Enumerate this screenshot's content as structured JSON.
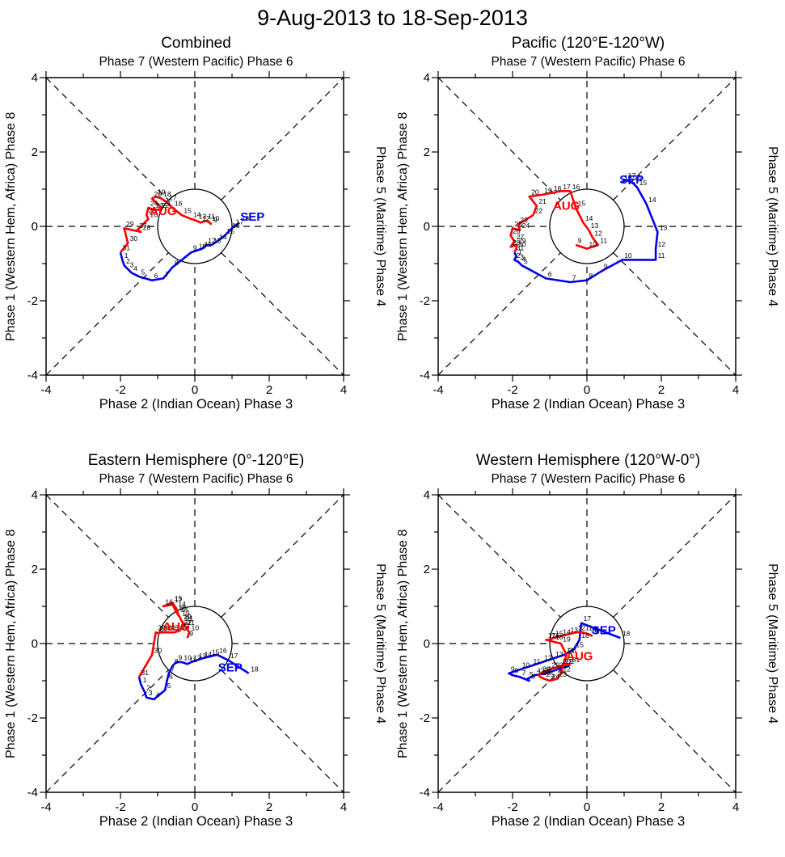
{
  "title": "9-Aug-2013 to 18-Sep-2013",
  "colors": {
    "aug": "#ff0000",
    "sep": "#0000ee",
    "axis": "#000000",
    "background": "#ffffff",
    "day_label": "#000000"
  },
  "chart_data": [
    {
      "type": "line",
      "title": "Combined",
      "top_label": "Phase 7 (Western Pacific) Phase 6",
      "xlabel": "Phase 2 (Indian Ocean) Phase 3",
      "left_label": "Phase 1 (Western Hem, Africa) Phase 8",
      "right_label": "Phase 5 (Maritime) Phase 4",
      "xlim": [
        -4,
        4
      ],
      "ylim": [
        -4,
        4
      ],
      "ticks_labeled": [
        -4,
        -2,
        0,
        2,
        4
      ],
      "unit_circle_radius": 1,
      "series": [
        {
          "name": "AUG",
          "color": "#ff0000",
          "label_pos": [
            -0.85,
            0.3
          ],
          "days": [
            9,
            10,
            11,
            12,
            13,
            14,
            15,
            16,
            17,
            18,
            19,
            20,
            21,
            22,
            23,
            24,
            25,
            26,
            27,
            28,
            29,
            30,
            31
          ],
          "points": [
            [
              0.45,
              0.05
            ],
            [
              0.4,
              0.1
            ],
            [
              0.3,
              0.15
            ],
            [
              0.15,
              0.1
            ],
            [
              0.05,
              0.15
            ],
            [
              -0.1,
              0.2
            ],
            [
              -0.35,
              0.3
            ],
            [
              -0.6,
              0.5
            ],
            [
              -0.75,
              0.65
            ],
            [
              -0.9,
              0.75
            ],
            [
              -1.05,
              0.8
            ],
            [
              -1.15,
              0.75
            ],
            [
              -0.9,
              0.5
            ],
            [
              -0.95,
              0.45
            ],
            [
              -1.1,
              0.45
            ],
            [
              -1.25,
              0.5
            ],
            [
              -1.3,
              0.3
            ],
            [
              -1.25,
              0.2
            ],
            [
              -1.55,
              -0.1
            ],
            [
              -1.45,
              -0.15
            ],
            [
              -1.9,
              -0.05
            ],
            [
              -1.8,
              -0.45
            ],
            [
              -2.0,
              -0.7
            ]
          ]
        },
        {
          "name": "SEP",
          "color": "#0000ee",
          "label_pos": [
            1.55,
            0.15
          ],
          "days": [
            1,
            2,
            3,
            4,
            5,
            6,
            7,
            8,
            9,
            10,
            11,
            12,
            13,
            14,
            15,
            16,
            17,
            18
          ],
          "points": [
            [
              -1.95,
              -0.9
            ],
            [
              -1.9,
              -1.05
            ],
            [
              -1.8,
              -1.15
            ],
            [
              -1.7,
              -1.25
            ],
            [
              -1.5,
              -1.35
            ],
            [
              -1.15,
              -1.45
            ],
            [
              -0.85,
              -1.4
            ],
            [
              -0.6,
              -1.1
            ],
            [
              -0.1,
              -0.7
            ],
            [
              0.05,
              -0.65
            ],
            [
              0.2,
              -0.6
            ],
            [
              0.3,
              -0.5
            ],
            [
              0.45,
              -0.5
            ],
            [
              0.6,
              -0.4
            ],
            [
              0.8,
              -0.25
            ],
            [
              0.95,
              -0.1
            ],
            [
              1.05,
              0.0
            ],
            [
              1.2,
              0.1
            ]
          ]
        }
      ]
    },
    {
      "type": "line",
      "title": "Pacific (120°E-120°W)",
      "top_label": "Phase 7 (Western Pacific) Phase 6",
      "xlabel": "Phase 2 (Indian Ocean) Phase 3",
      "left_label": "Phase 1 (Western Hem, Africa) Phase 8",
      "right_label": "Phase 5 (Maritime) Phase 4",
      "xlim": [
        -4,
        4
      ],
      "ylim": [
        -4,
        4
      ],
      "ticks_labeled": [
        -4,
        -2,
        0,
        2,
        4
      ],
      "unit_circle_radius": 1,
      "series": [
        {
          "name": "AUG",
          "color": "#ff0000",
          "label_pos": [
            -0.55,
            0.45
          ],
          "days": [
            9,
            10,
            11,
            12,
            13,
            14,
            15,
            16,
            17,
            18,
            19,
            20,
            21,
            22,
            23,
            24,
            25,
            26,
            27,
            28,
            29,
            30,
            31
          ],
          "points": [
            [
              -0.3,
              -0.5
            ],
            [
              0.0,
              -0.6
            ],
            [
              0.3,
              -0.5
            ],
            [
              0.15,
              -0.3
            ],
            [
              0.05,
              -0.1
            ],
            [
              -0.1,
              0.1
            ],
            [
              -0.3,
              0.5
            ],
            [
              -0.45,
              0.95
            ],
            [
              -0.7,
              0.95
            ],
            [
              -0.95,
              0.9
            ],
            [
              -1.2,
              0.85
            ],
            [
              -1.55,
              0.8
            ],
            [
              -1.35,
              0.55
            ],
            [
              -1.45,
              0.3
            ],
            [
              -1.85,
              0.05
            ],
            [
              -1.8,
              -0.1
            ],
            [
              -2.0,
              -0.05
            ],
            [
              -2.05,
              -0.25
            ],
            [
              -1.95,
              -0.4
            ],
            [
              -2.05,
              -0.55
            ],
            [
              -1.9,
              -0.5
            ],
            [
              -1.9,
              -0.6
            ],
            [
              -1.95,
              -0.7
            ]
          ]
        },
        {
          "name": "SEP",
          "color": "#0000ee",
          "label_pos": [
            1.2,
            1.15
          ],
          "days": [
            1,
            2,
            3,
            4,
            5,
            6,
            7,
            8,
            9,
            10,
            11,
            12,
            13,
            14,
            15,
            16,
            17,
            18
          ],
          "points": [
            [
              -1.9,
              -0.8
            ],
            [
              -1.95,
              -0.9
            ],
            [
              -1.85,
              -0.95
            ],
            [
              -1.8,
              -1.0
            ],
            [
              -1.75,
              -1.05
            ],
            [
              -1.1,
              -1.4
            ],
            [
              -0.45,
              -1.5
            ],
            [
              0.0,
              -1.45
            ],
            [
              0.4,
              -1.2
            ],
            [
              0.95,
              -0.9
            ],
            [
              1.85,
              -0.9
            ],
            [
              1.85,
              -0.6
            ],
            [
              1.9,
              -0.15
            ],
            [
              1.6,
              0.6
            ],
            [
              1.35,
              1.05
            ],
            [
              1.2,
              1.2
            ],
            [
              1.05,
              1.25
            ],
            [
              0.95,
              1.2
            ]
          ]
        }
      ]
    },
    {
      "type": "line",
      "title": "Eastern Hemisphere (0°-120°E)",
      "top_label": "Phase 7 (Western Pacific) Phase 6",
      "xlabel": "Phase 2 (Indian Ocean) Phase 3",
      "left_label": "Phase 1 (Western Hem, Africa) Phase 8",
      "right_label": "Phase 5 (Maritime) Phase 4",
      "xlim": [
        -4,
        4
      ],
      "ylim": [
        -4,
        4
      ],
      "ticks_labeled": [
        -4,
        -2,
        0,
        2,
        4
      ],
      "unit_circle_radius": 1,
      "series": [
        {
          "name": "AUG",
          "color": "#ff0000",
          "label_pos": [
            -0.5,
            0.35
          ],
          "days": [
            9,
            10,
            11,
            12,
            13,
            14,
            15,
            16,
            17,
            18,
            19,
            20,
            21,
            22,
            23,
            24,
            25,
            26,
            27,
            28,
            29,
            30,
            31
          ],
          "points": [
            [
              -0.2,
              0.15
            ],
            [
              -0.15,
              0.3
            ],
            [
              -0.25,
              0.45
            ],
            [
              -0.35,
              0.6
            ],
            [
              -0.45,
              0.8
            ],
            [
              -0.5,
              0.95
            ],
            [
              -0.6,
              1.1
            ],
            [
              -0.85,
              1.0
            ],
            [
              -0.6,
              1.05
            ],
            [
              -0.5,
              0.85
            ],
            [
              -0.4,
              0.7
            ],
            [
              -0.35,
              0.6
            ],
            [
              -0.3,
              0.55
            ],
            [
              -0.35,
              0.45
            ],
            [
              -0.4,
              0.35
            ],
            [
              -0.55,
              0.3
            ],
            [
              -0.7,
              0.3
            ],
            [
              -0.8,
              0.3
            ],
            [
              -0.9,
              0.3
            ],
            [
              -1.0,
              0.28
            ],
            [
              -1.05,
              0.3
            ],
            [
              -1.15,
              -0.3
            ],
            [
              -1.5,
              -0.9
            ]
          ]
        },
        {
          "name": "SEP",
          "color": "#0000ee",
          "label_pos": [
            0.95,
            -0.75
          ],
          "days": [
            1,
            2,
            3,
            4,
            5,
            6,
            7,
            8,
            9,
            10,
            11,
            12,
            13,
            14,
            15,
            16,
            17,
            18
          ],
          "points": [
            [
              -1.45,
              -1.1
            ],
            [
              -1.35,
              -1.3
            ],
            [
              -1.3,
              -1.45
            ],
            [
              -1.1,
              -1.5
            ],
            [
              -0.8,
              -1.25
            ],
            [
              -0.75,
              -1.0
            ],
            [
              -0.7,
              -0.8
            ],
            [
              -0.6,
              -0.6
            ],
            [
              -0.5,
              -0.5
            ],
            [
              -0.35,
              -0.5
            ],
            [
              -0.2,
              -0.55
            ],
            [
              -0.1,
              -0.5
            ],
            [
              0.05,
              -0.45
            ],
            [
              0.2,
              -0.4
            ],
            [
              0.4,
              -0.35
            ],
            [
              0.6,
              -0.3
            ],
            [
              0.9,
              -0.45
            ],
            [
              1.45,
              -0.8
            ]
          ]
        }
      ]
    },
    {
      "type": "line",
      "title": "Western Hemisphere (120°W-0°)",
      "top_label": "Phase 7 (Western Pacific) Phase 6",
      "xlabel": "Phase 2 (Indian Ocean) Phase 3",
      "left_label": "Phase 1 (Western Hem, Africa) Phase 8",
      "right_label": "Phase 5 (Maritime) Phase 4",
      "xlim": [
        -4,
        4
      ],
      "ylim": [
        -4,
        4
      ],
      "ticks_labeled": [
        -4,
        -2,
        0,
        2,
        4
      ],
      "unit_circle_radius": 1,
      "series": [
        {
          "name": "AUG",
          "color": "#ff0000",
          "label_pos": [
            -0.2,
            -0.45
          ],
          "days": [
            9,
            10,
            11,
            12,
            13,
            14,
            15,
            16,
            17,
            18,
            19,
            20,
            21,
            22,
            23,
            24,
            25,
            26,
            27,
            28,
            29,
            30,
            31
          ],
          "points": [
            [
              0.15,
              0.2
            ],
            [
              0.05,
              0.25
            ],
            [
              -0.1,
              0.3
            ],
            [
              -0.3,
              0.3
            ],
            [
              -0.5,
              0.25
            ],
            [
              -0.7,
              0.2
            ],
            [
              -0.9,
              0.15
            ],
            [
              -1.0,
              0.1
            ],
            [
              -1.1,
              0.1
            ],
            [
              -0.9,
              0.05
            ],
            [
              -0.7,
              0.0
            ],
            [
              -0.55,
              -0.3
            ],
            [
              -0.65,
              -0.6
            ],
            [
              -0.7,
              -0.8
            ],
            [
              -0.8,
              -0.95
            ],
            [
              -1.0,
              -1.0
            ],
            [
              -1.15,
              -0.95
            ],
            [
              -1.25,
              -0.9
            ],
            [
              -1.3,
              -0.85
            ],
            [
              -1.25,
              -0.8
            ],
            [
              -1.0,
              -0.7
            ],
            [
              -0.7,
              -0.6
            ],
            [
              -0.45,
              -0.55
            ]
          ]
        },
        {
          "name": "SEP",
          "color": "#0000ee",
          "label_pos": [
            0.45,
            0.25
          ],
          "days": [
            1,
            2,
            3,
            4,
            5,
            6,
            7,
            8,
            9,
            10,
            11,
            12,
            13,
            14,
            15,
            16,
            17,
            18
          ],
          "points": [
            [
              -0.5,
              -0.6
            ],
            [
              -0.8,
              -0.7
            ],
            [
              -1.1,
              -0.8
            ],
            [
              -1.4,
              -0.85
            ],
            [
              -1.6,
              -0.95
            ],
            [
              -1.55,
              -1.0
            ],
            [
              -1.8,
              -0.9
            ],
            [
              -2.0,
              -0.85
            ],
            [
              -2.1,
              -0.8
            ],
            [
              -1.8,
              -0.7
            ],
            [
              -1.5,
              -0.6
            ],
            [
              -1.2,
              -0.5
            ],
            [
              -0.9,
              -0.4
            ],
            [
              -0.6,
              -0.3
            ],
            [
              -0.35,
              -0.15
            ],
            [
              -0.2,
              0.1
            ],
            [
              -0.15,
              0.55
            ],
            [
              0.9,
              0.15
            ]
          ]
        }
      ]
    }
  ]
}
